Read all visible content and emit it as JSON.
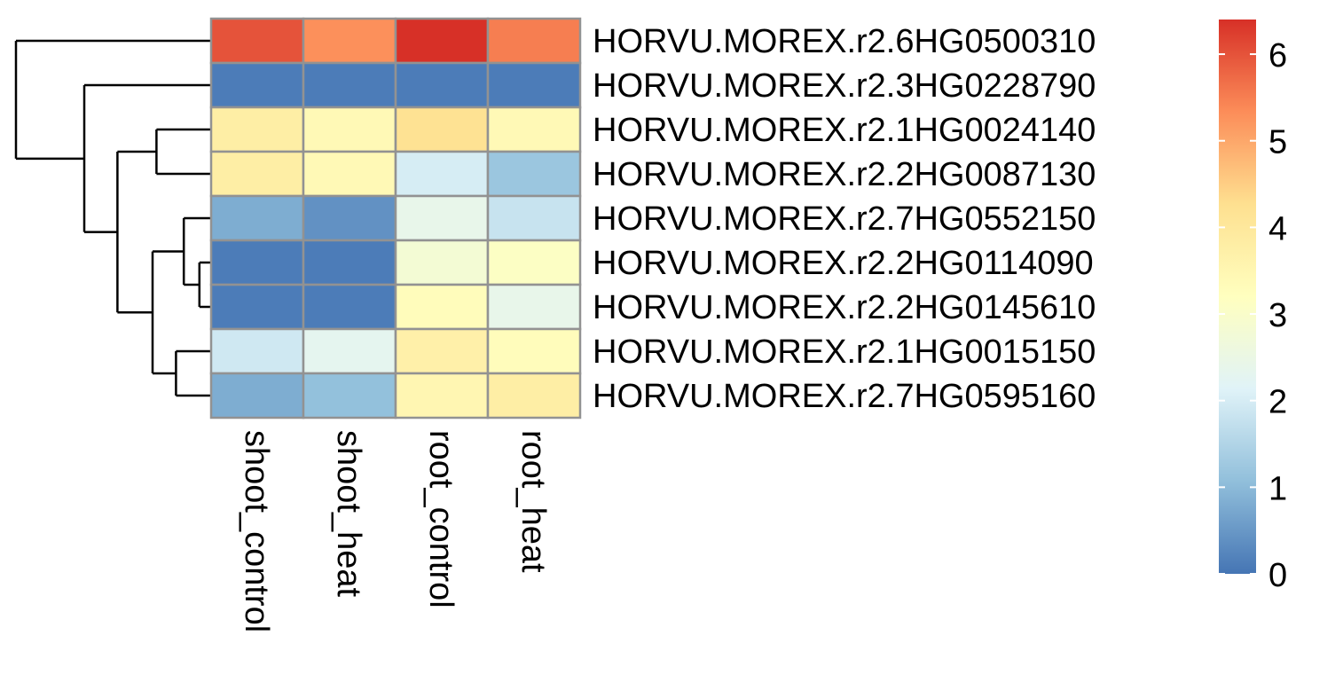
{
  "chart_data": {
    "type": "heatmap",
    "title": "",
    "xlabel": "",
    "ylabel": "",
    "columns": [
      "shoot_control",
      "shoot_heat",
      "root_control",
      "root_heat"
    ],
    "rows": [
      "HORVU.MOREX.r2.6HG0500310",
      "HORVU.MOREX.r2.3HG0228790",
      "HORVU.MOREX.r2.1HG0024140",
      "HORVU.MOREX.r2.2HG0087130",
      "HORVU.MOREX.r2.7HG0552150",
      "HORVU.MOREX.r2.2HG0114090",
      "HORVU.MOREX.r2.2HG0145610",
      "HORVU.MOREX.r2.1HG0015150",
      "HORVU.MOREX.r2.7HG0595160"
    ],
    "values": [
      [
        6.0,
        5.3,
        6.4,
        5.5
      ],
      [
        0.1,
        0.1,
        0.1,
        0.1
      ],
      [
        3.8,
        3.4,
        4.2,
        3.4
      ],
      [
        3.8,
        3.4,
        2.0,
        1.2
      ],
      [
        0.8,
        0.4,
        2.4,
        1.8
      ],
      [
        0.1,
        0.1,
        2.8,
        3.1
      ],
      [
        0.1,
        0.1,
        3.3,
        2.4
      ],
      [
        1.9,
        2.3,
        3.7,
        3.3
      ],
      [
        0.8,
        1.1,
        3.5,
        3.8
      ]
    ],
    "colorbar": {
      "range": [
        0,
        6.4
      ],
      "ticks": [
        "0",
        "1",
        "2",
        "3",
        "4",
        "5",
        "6"
      ],
      "colors": [
        "#4575B4",
        "#91BFDB",
        "#E0F3F8",
        "#FFFFBF",
        "#FEE090",
        "#FC8D59",
        "#D73027"
      ]
    },
    "row_dendrogram": [
      {
        "merge": [
          5,
          6
        ],
        "height": 0.06
      },
      {
        "merge": [
          4,
          "m0"
        ],
        "height": 0.14
      },
      {
        "merge": [
          7,
          8
        ],
        "height": 0.18
      },
      {
        "merge": [
          "m1",
          "m2"
        ],
        "height": 0.3
      },
      {
        "merge": [
          2,
          3
        ],
        "height": 0.28
      },
      {
        "merge": [
          "m4",
          "m3"
        ],
        "height": 0.48
      },
      {
        "merge": [
          1,
          "m5"
        ],
        "height": 0.65
      },
      {
        "merge": [
          0,
          "m6"
        ],
        "height": 1.0
      }
    ],
    "grid": false,
    "legend": "right"
  }
}
